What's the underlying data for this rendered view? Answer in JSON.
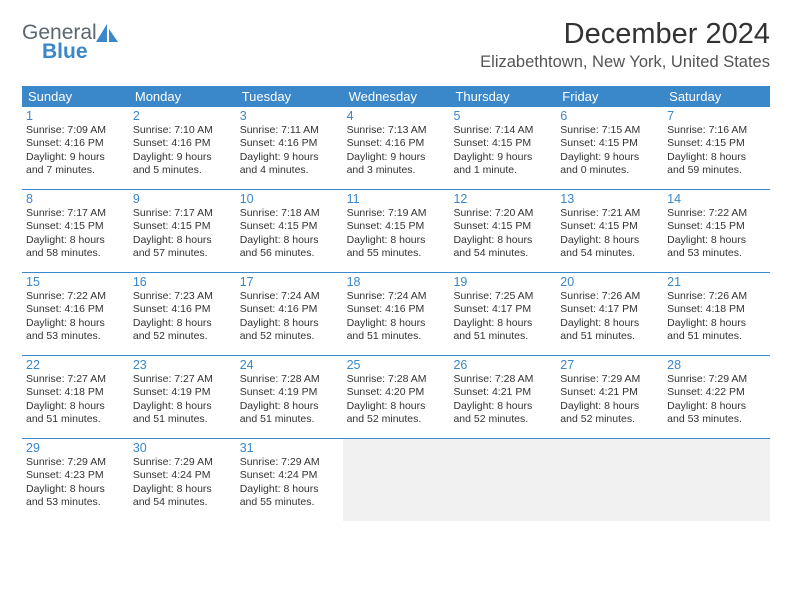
{
  "brand": {
    "word1": "General",
    "word2": "Blue"
  },
  "title": {
    "month": "December 2024",
    "location": "Elizabethtown, New York, United States"
  },
  "colors": {
    "accent": "#3a87c9",
    "text": "#333333",
    "bg": "#ffffff",
    "empty": "#f1f1f1"
  },
  "dow": [
    "Sunday",
    "Monday",
    "Tuesday",
    "Wednesday",
    "Thursday",
    "Friday",
    "Saturday"
  ],
  "weeks": [
    [
      {
        "n": "1",
        "sr": "Sunrise: 7:09 AM",
        "ss": "Sunset: 4:16 PM",
        "d1": "Daylight: 9 hours",
        "d2": "and 7 minutes."
      },
      {
        "n": "2",
        "sr": "Sunrise: 7:10 AM",
        "ss": "Sunset: 4:16 PM",
        "d1": "Daylight: 9 hours",
        "d2": "and 5 minutes."
      },
      {
        "n": "3",
        "sr": "Sunrise: 7:11 AM",
        "ss": "Sunset: 4:16 PM",
        "d1": "Daylight: 9 hours",
        "d2": "and 4 minutes."
      },
      {
        "n": "4",
        "sr": "Sunrise: 7:13 AM",
        "ss": "Sunset: 4:16 PM",
        "d1": "Daylight: 9 hours",
        "d2": "and 3 minutes."
      },
      {
        "n": "5",
        "sr": "Sunrise: 7:14 AM",
        "ss": "Sunset: 4:15 PM",
        "d1": "Daylight: 9 hours",
        "d2": "and 1 minute."
      },
      {
        "n": "6",
        "sr": "Sunrise: 7:15 AM",
        "ss": "Sunset: 4:15 PM",
        "d1": "Daylight: 9 hours",
        "d2": "and 0 minutes."
      },
      {
        "n": "7",
        "sr": "Sunrise: 7:16 AM",
        "ss": "Sunset: 4:15 PM",
        "d1": "Daylight: 8 hours",
        "d2": "and 59 minutes."
      }
    ],
    [
      {
        "n": "8",
        "sr": "Sunrise: 7:17 AM",
        "ss": "Sunset: 4:15 PM",
        "d1": "Daylight: 8 hours",
        "d2": "and 58 minutes."
      },
      {
        "n": "9",
        "sr": "Sunrise: 7:17 AM",
        "ss": "Sunset: 4:15 PM",
        "d1": "Daylight: 8 hours",
        "d2": "and 57 minutes."
      },
      {
        "n": "10",
        "sr": "Sunrise: 7:18 AM",
        "ss": "Sunset: 4:15 PM",
        "d1": "Daylight: 8 hours",
        "d2": "and 56 minutes."
      },
      {
        "n": "11",
        "sr": "Sunrise: 7:19 AM",
        "ss": "Sunset: 4:15 PM",
        "d1": "Daylight: 8 hours",
        "d2": "and 55 minutes."
      },
      {
        "n": "12",
        "sr": "Sunrise: 7:20 AM",
        "ss": "Sunset: 4:15 PM",
        "d1": "Daylight: 8 hours",
        "d2": "and 54 minutes."
      },
      {
        "n": "13",
        "sr": "Sunrise: 7:21 AM",
        "ss": "Sunset: 4:15 PM",
        "d1": "Daylight: 8 hours",
        "d2": "and 54 minutes."
      },
      {
        "n": "14",
        "sr": "Sunrise: 7:22 AM",
        "ss": "Sunset: 4:15 PM",
        "d1": "Daylight: 8 hours",
        "d2": "and 53 minutes."
      }
    ],
    [
      {
        "n": "15",
        "sr": "Sunrise: 7:22 AM",
        "ss": "Sunset: 4:16 PM",
        "d1": "Daylight: 8 hours",
        "d2": "and 53 minutes."
      },
      {
        "n": "16",
        "sr": "Sunrise: 7:23 AM",
        "ss": "Sunset: 4:16 PM",
        "d1": "Daylight: 8 hours",
        "d2": "and 52 minutes."
      },
      {
        "n": "17",
        "sr": "Sunrise: 7:24 AM",
        "ss": "Sunset: 4:16 PM",
        "d1": "Daylight: 8 hours",
        "d2": "and 52 minutes."
      },
      {
        "n": "18",
        "sr": "Sunrise: 7:24 AM",
        "ss": "Sunset: 4:16 PM",
        "d1": "Daylight: 8 hours",
        "d2": "and 51 minutes."
      },
      {
        "n": "19",
        "sr": "Sunrise: 7:25 AM",
        "ss": "Sunset: 4:17 PM",
        "d1": "Daylight: 8 hours",
        "d2": "and 51 minutes."
      },
      {
        "n": "20",
        "sr": "Sunrise: 7:26 AM",
        "ss": "Sunset: 4:17 PM",
        "d1": "Daylight: 8 hours",
        "d2": "and 51 minutes."
      },
      {
        "n": "21",
        "sr": "Sunrise: 7:26 AM",
        "ss": "Sunset: 4:18 PM",
        "d1": "Daylight: 8 hours",
        "d2": "and 51 minutes."
      }
    ],
    [
      {
        "n": "22",
        "sr": "Sunrise: 7:27 AM",
        "ss": "Sunset: 4:18 PM",
        "d1": "Daylight: 8 hours",
        "d2": "and 51 minutes."
      },
      {
        "n": "23",
        "sr": "Sunrise: 7:27 AM",
        "ss": "Sunset: 4:19 PM",
        "d1": "Daylight: 8 hours",
        "d2": "and 51 minutes."
      },
      {
        "n": "24",
        "sr": "Sunrise: 7:28 AM",
        "ss": "Sunset: 4:19 PM",
        "d1": "Daylight: 8 hours",
        "d2": "and 51 minutes."
      },
      {
        "n": "25",
        "sr": "Sunrise: 7:28 AM",
        "ss": "Sunset: 4:20 PM",
        "d1": "Daylight: 8 hours",
        "d2": "and 52 minutes."
      },
      {
        "n": "26",
        "sr": "Sunrise: 7:28 AM",
        "ss": "Sunset: 4:21 PM",
        "d1": "Daylight: 8 hours",
        "d2": "and 52 minutes."
      },
      {
        "n": "27",
        "sr": "Sunrise: 7:29 AM",
        "ss": "Sunset: 4:21 PM",
        "d1": "Daylight: 8 hours",
        "d2": "and 52 minutes."
      },
      {
        "n": "28",
        "sr": "Sunrise: 7:29 AM",
        "ss": "Sunset: 4:22 PM",
        "d1": "Daylight: 8 hours",
        "d2": "and 53 minutes."
      }
    ],
    [
      {
        "n": "29",
        "sr": "Sunrise: 7:29 AM",
        "ss": "Sunset: 4:23 PM",
        "d1": "Daylight: 8 hours",
        "d2": "and 53 minutes."
      },
      {
        "n": "30",
        "sr": "Sunrise: 7:29 AM",
        "ss": "Sunset: 4:24 PM",
        "d1": "Daylight: 8 hours",
        "d2": "and 54 minutes."
      },
      {
        "n": "31",
        "sr": "Sunrise: 7:29 AM",
        "ss": "Sunset: 4:24 PM",
        "d1": "Daylight: 8 hours",
        "d2": "and 55 minutes."
      },
      null,
      null,
      null,
      null
    ]
  ]
}
